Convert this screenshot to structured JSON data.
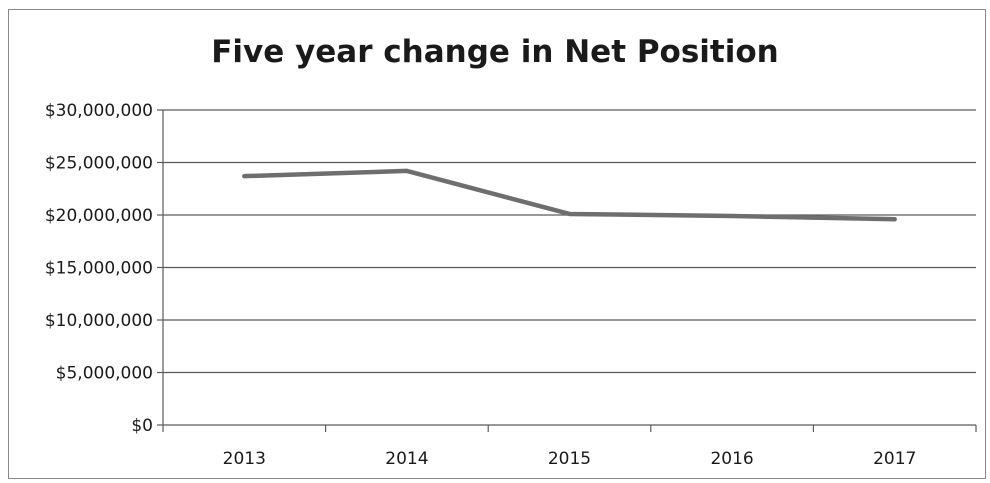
{
  "chart_data": {
    "type": "line",
    "title": "Five year change in Net Position",
    "xlabel": "",
    "ylabel": "",
    "categories": [
      "2013",
      "2014",
      "2015",
      "2016",
      "2017"
    ],
    "series": [
      {
        "values": [
          23700000,
          24200000,
          20100000,
          19900000,
          19600000
        ],
        "color": "#6e6e6e"
      }
    ],
    "ylim": [
      0,
      30000000
    ],
    "yticks": [
      0,
      5000000,
      10000000,
      15000000,
      20000000,
      25000000,
      30000000
    ],
    "ytick_labels": [
      "$0",
      "$5,000,000",
      "$10,000,000",
      "$15,000,000",
      "$20,000,000",
      "$25,000,000",
      "$30,000,000"
    ],
    "grid": true,
    "legend": "none"
  }
}
